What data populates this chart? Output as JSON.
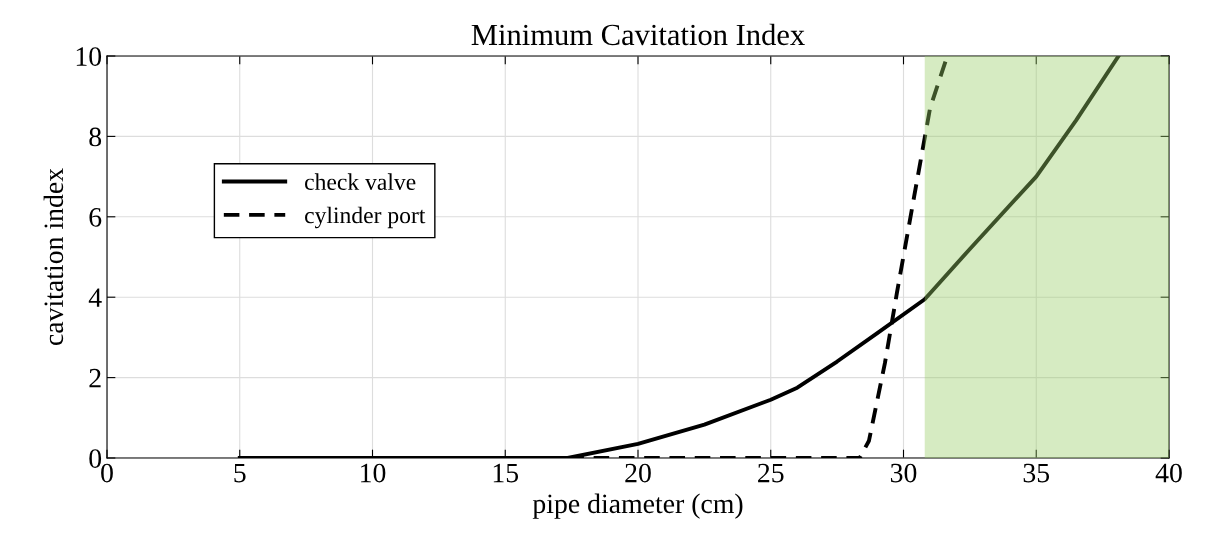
{
  "chart_data": {
    "type": "line",
    "title": "Minimum Cavitation Index",
    "xlabel": "pipe diameter (cm)",
    "ylabel": "cavitation index",
    "xlim": [
      0,
      40
    ],
    "ylim": [
      0,
      10
    ],
    "xticks": [
      0,
      5,
      10,
      15,
      20,
      25,
      30,
      35,
      40
    ],
    "yticks": [
      0,
      2,
      4,
      6,
      8,
      10
    ],
    "grid": true,
    "legend": "left",
    "series": [
      {
        "name": "check valve",
        "color": "#000000",
        "line_style": "solid",
        "x": [
          5,
          17.35,
          20,
          22.5,
          25,
          26,
          27.5,
          29,
          30.8,
          32.5,
          35,
          36.5,
          38.1
        ],
        "values": [
          0,
          0,
          0.35,
          0.83,
          1.45,
          1.75,
          2.4,
          3.1,
          3.95,
          5.2,
          7.0,
          8.4,
          10
        ]
      },
      {
        "name": "cylinder port",
        "color": "#000000",
        "line_style": "dashed",
        "x": [
          5,
          28.35,
          28.7,
          29.3,
          29.75,
          30.4,
          31.0,
          31.65
        ],
        "values": [
          0,
          0,
          0.43,
          2.36,
          4.1,
          6.5,
          8.7,
          10
        ]
      }
    ],
    "bands": [
      {
        "axis": "x",
        "from": 30.8,
        "to": 40,
        "color": "#99cc66"
      }
    ]
  }
}
